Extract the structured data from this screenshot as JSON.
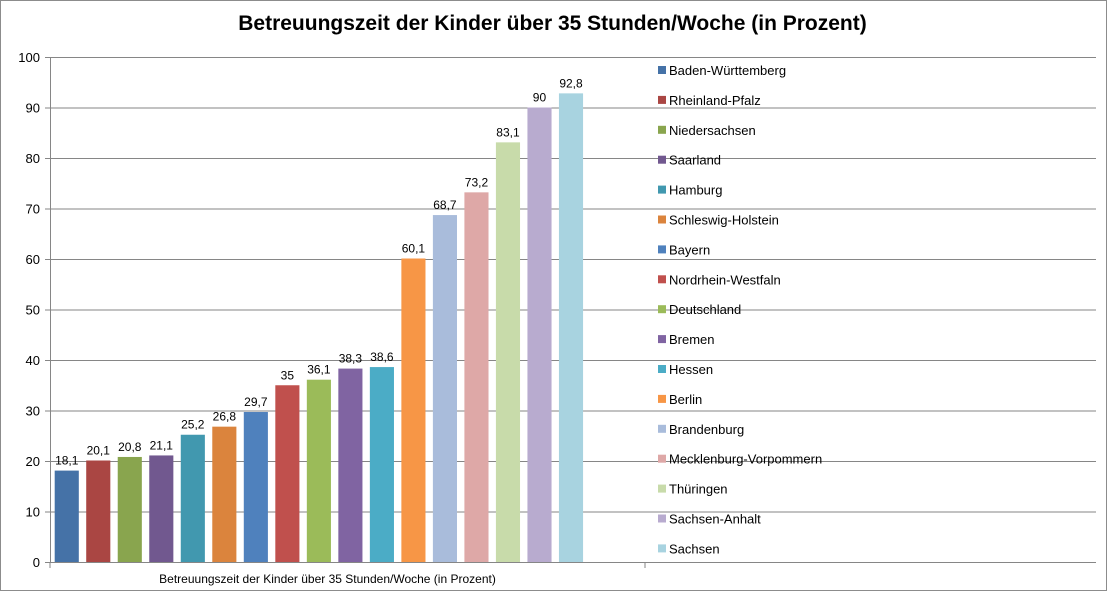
{
  "chart_data": {
    "type": "bar",
    "title": "Betreuungszeit der Kinder über 35 Stunden/Woche (in Prozent)",
    "category_label": "Betreuungszeit der Kinder über 35 Stunden/Woche (in Prozent)",
    "ylim": [
      0,
      100
    ],
    "yticks": [
      0,
      10,
      20,
      30,
      40,
      50,
      60,
      70,
      80,
      90,
      100
    ],
    "grid": true,
    "legend_position": "right",
    "series": [
      {
        "name": "Baden-Württemberg",
        "value": 18.1,
        "label": "18,1",
        "color": "#4572a7"
      },
      {
        "name": "Rheinland-Pfalz",
        "value": 20.1,
        "label": "20,1",
        "color": "#aa4643"
      },
      {
        "name": "Niedersachsen",
        "value": 20.8,
        "label": "20,8",
        "color": "#89a54e"
      },
      {
        "name": "Saarland",
        "value": 21.1,
        "label": "21,1",
        "color": "#71588f"
      },
      {
        "name": "Hamburg",
        "value": 25.2,
        "label": "25,2",
        "color": "#4198af"
      },
      {
        "name": "Schleswig-Holstein",
        "value": 26.8,
        "label": "26,8",
        "color": "#db843d"
      },
      {
        "name": "Bayern",
        "value": 29.7,
        "label": "29,7",
        "color": "#4f81bd"
      },
      {
        "name": "Nordrhein-Westfaln",
        "value": 35,
        "label": "35",
        "color": "#c0504d"
      },
      {
        "name": "Deutschland",
        "value": 36.1,
        "label": "36,1",
        "color": "#9bbb59"
      },
      {
        "name": "Bremen",
        "value": 38.3,
        "label": "38,3",
        "color": "#8064a2"
      },
      {
        "name": "Hessen",
        "value": 38.6,
        "label": "38,6",
        "color": "#4bacc6"
      },
      {
        "name": "Berlin",
        "value": 60.1,
        "label": "60,1",
        "color": "#f79646"
      },
      {
        "name": "Brandenburg",
        "value": 68.7,
        "label": "68,7",
        "color": "#a9bcdb"
      },
      {
        "name": "Mecklenburg-Vorpommern",
        "value": 73.2,
        "label": "73,2",
        "color": "#dea8a7"
      },
      {
        "name": "Thüringen",
        "value": 83.1,
        "label": "83,1",
        "color": "#c8dbaa"
      },
      {
        "name": "Sachsen-Anhalt",
        "value": 90,
        "label": "90",
        "color": "#b8abcf"
      },
      {
        "name": "Sachsen",
        "value": 92.8,
        "label": "92,8",
        "color": "#a8d3e0"
      }
    ]
  }
}
